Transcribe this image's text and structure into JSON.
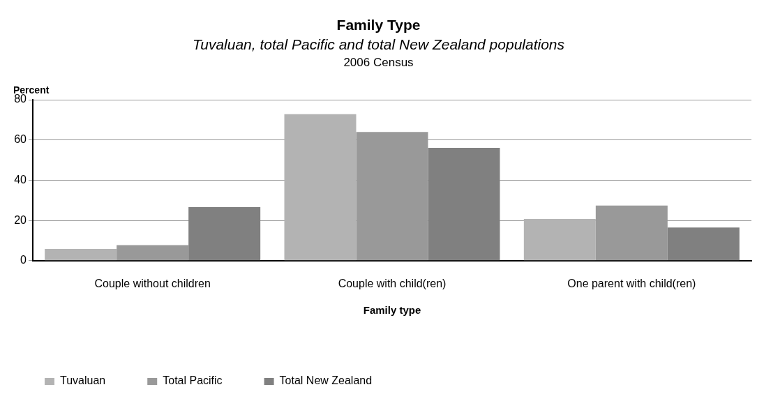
{
  "chart_data": {
    "type": "bar",
    "title": "Family Type",
    "subtitle": "Tuvaluan, total Pacific and total New Zealand populations",
    "annotations": [
      "2006 Census"
    ],
    "xlabel": "Family type",
    "ylabel": "Percent",
    "categories": [
      "Couple without children",
      "Couple with child(ren)",
      "One parent with child(ren)"
    ],
    "series": [
      {
        "name": "Tuvaluan",
        "color": "#b3b3b3",
        "values": [
          5.8,
          72.8,
          20.7
        ]
      },
      {
        "name": "Total Pacific",
        "color": "#999999",
        "values": [
          7.7,
          64.0,
          27.4
        ]
      },
      {
        "name": "Total New Zealand",
        "color": "#808080",
        "values": [
          26.6,
          56.1,
          16.5
        ]
      }
    ],
    "ylim": [
      0,
      80
    ],
    "yticks": [
      0,
      20,
      40,
      60,
      80
    ],
    "grid": "y",
    "legend": "bottom left"
  }
}
